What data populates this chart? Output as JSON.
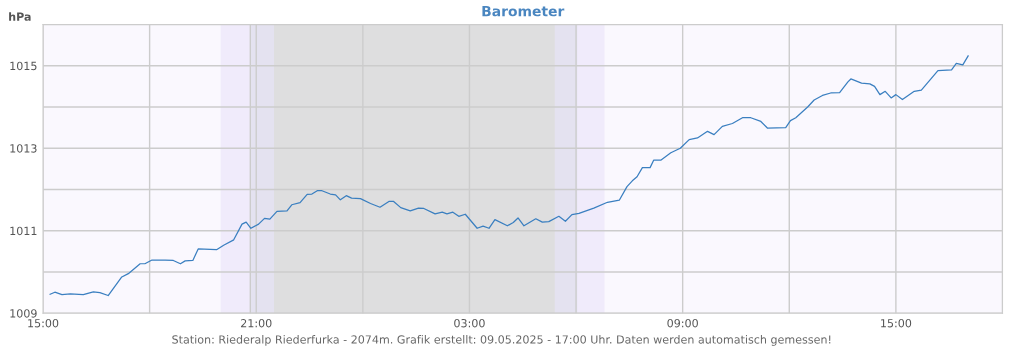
{
  "chart_data": {
    "type": "line",
    "title": "Barometer",
    "ylabel": "hPa",
    "annotations": [
      "Station: Riederalp Riederfurka - 2074m. Grafik erstellt: 09.05.2025 - 17:00 Uhr. Daten werden automatisch gemessen!"
    ],
    "xlim": [
      "2025-05-08T15:00",
      "2025-05-09T18:00"
    ],
    "ylim": [
      1009,
      1016
    ],
    "xticks": [
      {
        "value": "2025-05-08T15:00",
        "label": "15:00"
      },
      {
        "value": "2025-05-08T18:00",
        "label": null
      },
      {
        "value": "2025-05-08T21:00",
        "label": "21:00"
      },
      {
        "value": "2025-05-09T00:00",
        "label": null
      },
      {
        "value": "2025-05-09T03:00",
        "label": "03:00"
      },
      {
        "value": "2025-05-09T06:00",
        "label": null
      },
      {
        "value": "2025-05-09T09:00",
        "label": "09:00"
      },
      {
        "value": "2025-05-09T12:00",
        "label": null
      },
      {
        "value": "2025-05-09T15:00",
        "label": "15:00"
      },
      {
        "value": "2025-05-09T18:00",
        "label": null
      }
    ],
    "yticks": [
      1009,
      {
        "value": 1010,
        "label": null
      },
      1011,
      {
        "value": 1012,
        "label": null
      },
      1013,
      {
        "value": 1014,
        "label": null
      },
      1015,
      {
        "value": 1016,
        "label": null
      }
    ],
    "grid": true,
    "marker": "none",
    "line_style": "solid",
    "bands": [
      {
        "axis": "x",
        "from": "2025-05-08T20:00",
        "to": "2025-05-09T06:48",
        "color": "#f0ebfb"
      },
      {
        "axis": "x",
        "from": "2025-05-08T20:50",
        "to": "2025-05-09T06:02",
        "color": "#e4e2f0"
      },
      {
        "axis": "x",
        "from": "2025-05-08T21:30",
        "to": "2025-05-09T05:24",
        "color": "#dededf"
      }
    ],
    "ref_lines": [
      {
        "axis": "x",
        "value": "2025-05-08T20:50",
        "color": "#cccccc"
      }
    ],
    "series": [
      {
        "color": "#3a7fc0",
        "x": [
          "2025-05-08T15:12",
          "2025-05-08T15:20",
          "2025-05-08T15:32",
          "2025-05-08T15:46",
          "2025-05-08T16:08",
          "2025-05-08T16:25",
          "2025-05-08T16:36",
          "2025-05-08T16:50",
          "2025-05-08T17:13",
          "2025-05-08T17:24",
          "2025-05-08T17:44",
          "2025-05-08T17:52",
          "2025-05-08T18:04",
          "2025-05-08T18:26",
          "2025-05-08T18:40",
          "2025-05-08T18:52",
          "2025-05-08T19:00",
          "2025-05-08T19:13",
          "2025-05-08T19:22",
          "2025-05-08T19:53",
          "2025-05-08T20:05",
          "2025-05-08T20:22",
          "2025-05-08T20:36",
          "2025-05-08T20:43",
          "2025-05-08T20:51",
          "2025-05-08T21:04",
          "2025-05-08T21:14",
          "2025-05-08T21:23",
          "2025-05-08T21:35",
          "2025-05-08T21:52",
          "2025-05-08T22:00",
          "2025-05-08T22:14",
          "2025-05-08T22:26",
          "2025-05-08T22:34",
          "2025-05-08T22:43",
          "2025-05-08T22:51",
          "2025-05-08T23:05",
          "2025-05-08T23:14",
          "2025-05-08T23:22",
          "2025-05-08T23:32",
          "2025-05-08T23:41",
          "2025-05-08T23:56",
          "2025-05-09T00:13",
          "2025-05-09T00:29",
          "2025-05-09T00:44",
          "2025-05-09T00:52",
          "2025-05-09T01:04",
          "2025-05-09T01:20",
          "2025-05-09T01:34",
          "2025-05-09T01:43",
          "2025-05-09T02:02",
          "2025-05-09T02:14",
          "2025-05-09T02:22",
          "2025-05-09T02:32",
          "2025-05-09T02:42",
          "2025-05-09T02:53",
          "2025-05-09T03:13",
          "2025-05-09T03:23",
          "2025-05-09T03:33",
          "2025-05-09T03:43",
          "2025-05-09T04:04",
          "2025-05-09T04:14",
          "2025-05-09T04:22",
          "2025-05-09T04:32",
          "2025-05-09T04:52",
          "2025-05-09T05:03",
          "2025-05-09T05:14",
          "2025-05-09T05:31",
          "2025-05-09T05:42",
          "2025-05-09T05:53",
          "2025-05-09T06:05",
          "2025-05-09T06:30",
          "2025-05-09T06:53",
          "2025-05-09T07:13",
          "2025-05-09T07:26",
          "2025-05-09T07:35",
          "2025-05-09T07:43",
          "2025-05-09T07:52",
          "2025-05-09T08:05",
          "2025-05-09T08:11",
          "2025-05-09T08:23",
          "2025-05-09T08:40",
          "2025-05-09T08:56",
          "2025-05-09T09:11",
          "2025-05-09T09:25",
          "2025-05-09T09:42",
          "2025-05-09T09:53",
          "2025-05-09T10:07",
          "2025-05-09T10:24",
          "2025-05-09T10:41",
          "2025-05-09T10:55",
          "2025-05-09T11:12",
          "2025-05-09T11:23",
          "2025-05-09T11:54",
          "2025-05-09T12:02",
          "2025-05-09T12:11",
          "2025-05-09T12:31",
          "2025-05-09T12:42",
          "2025-05-09T12:56",
          "2025-05-09T13:10",
          "2025-05-09T13:25",
          "2025-05-09T13:39",
          "2025-05-09T13:44",
          "2025-05-09T14:02",
          "2025-05-09T14:16",
          "2025-05-09T14:24",
          "2025-05-09T14:33",
          "2025-05-09T14:42",
          "2025-05-09T14:52",
          "2025-05-09T15:00",
          "2025-05-09T15:11",
          "2025-05-09T15:31",
          "2025-05-09T15:43",
          "2025-05-09T16:11",
          "2025-05-09T16:34",
          "2025-05-09T16:42",
          "2025-05-09T16:53",
          "2025-05-09T17:02"
        ],
        "values": [
          1009.46,
          1009.51,
          1009.45,
          1009.47,
          1009.45,
          1009.52,
          1009.5,
          1009.43,
          1009.88,
          1009.96,
          1010.2,
          1010.2,
          1010.29,
          1010.29,
          1010.28,
          1010.2,
          1010.27,
          1010.28,
          1010.56,
          1010.54,
          1010.65,
          1010.78,
          1011.16,
          1011.21,
          1011.06,
          1011.16,
          1011.3,
          1011.28,
          1011.47,
          1011.48,
          1011.63,
          1011.68,
          1011.88,
          1011.89,
          1011.97,
          1011.97,
          1011.89,
          1011.87,
          1011.75,
          1011.85,
          1011.79,
          1011.78,
          1011.66,
          1011.57,
          1011.71,
          1011.71,
          1011.56,
          1011.48,
          1011.55,
          1011.54,
          1011.41,
          1011.45,
          1011.41,
          1011.45,
          1011.35,
          1011.4,
          1011.06,
          1011.11,
          1011.06,
          1011.27,
          1011.12,
          1011.2,
          1011.31,
          1011.12,
          1011.29,
          1011.21,
          1011.22,
          1011.35,
          1011.23,
          1011.39,
          1011.42,
          1011.55,
          1011.69,
          1011.74,
          1012.07,
          1012.21,
          1012.31,
          1012.53,
          1012.53,
          1012.71,
          1012.71,
          1012.89,
          1013.0,
          1013.21,
          1013.25,
          1013.41,
          1013.33,
          1013.53,
          1013.6,
          1013.74,
          1013.74,
          1013.65,
          1013.49,
          1013.5,
          1013.67,
          1013.74,
          1014.0,
          1014.17,
          1014.28,
          1014.34,
          1014.35,
          1014.61,
          1014.68,
          1014.58,
          1014.56,
          1014.5,
          1014.3,
          1014.38,
          1014.22,
          1014.3,
          1014.18,
          1014.38,
          1014.41,
          1014.88,
          1014.9,
          1015.06,
          1015.02,
          1015.24
        ]
      }
    ]
  }
}
